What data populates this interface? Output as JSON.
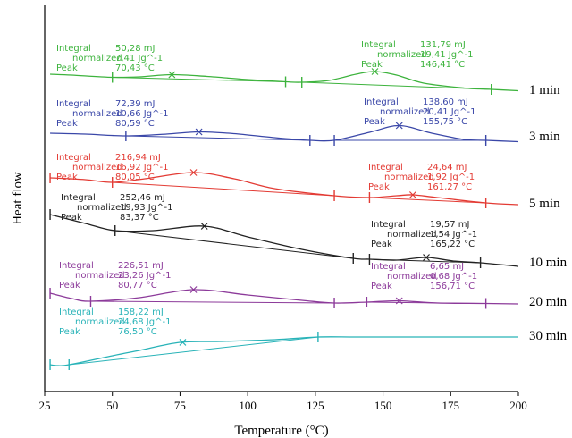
{
  "chart_data": {
    "type": "line",
    "title": "",
    "xlabel": "Temperature (°C)",
    "ylabel": "Heat flow",
    "xlim": [
      25,
      200
    ],
    "xticks": [
      "25",
      "50",
      "75",
      "100",
      "125",
      "150",
      "175",
      "200"
    ],
    "grid": false,
    "colors": {
      "1 min": "#3db33d",
      "3 min": "#3a47a8",
      "5 min": "#e33b34",
      "10 min": "#222222",
      "20 min": "#8c3a9a",
      "30 min": "#29b3b8"
    },
    "series": [
      {
        "name": "1 min",
        "x": [
          27,
          35,
          50,
          60,
          72,
          85,
          100,
          114,
          120,
          130,
          140,
          147,
          155,
          165,
          180,
          190,
          200
        ],
        "y": [
          83,
          84,
          86.5,
          86,
          83.5,
          85.5,
          89,
          91.5,
          92,
          90,
          83,
          80,
          84,
          93,
          98.5,
          100,
          101.5
        ],
        "peaks": [
          {
            "integral": "50,28 mJ",
            "normalized": "7,41 Jg^-1",
            "peak": "70,43 °C"
          },
          {
            "integral": "131,79 mJ",
            "normalized": "19,41 Jg^-1",
            "peak": "146,41 °C"
          }
        ]
      },
      {
        "name": "3 min",
        "x": [
          27,
          40,
          55,
          70,
          82,
          95,
          110,
          123,
          132,
          145,
          156,
          168,
          180,
          188,
          200
        ],
        "y": [
          149,
          150,
          152,
          150,
          147.5,
          149.5,
          154,
          157,
          157,
          148,
          140.5,
          149,
          156,
          157,
          158.5
        ],
        "peaks": [
          {
            "integral": "72,39 mJ",
            "normalized": "10,66 Jg^-1",
            "peak": "80,59 °C"
          },
          {
            "integral": "138,60 mJ",
            "normalized": "20,41 Jg^-1",
            "peak": "155,75 °C"
          }
        ]
      },
      {
        "name": "5 min",
        "x": [
          27,
          40,
          50,
          62,
          80,
          95,
          110,
          132,
          145,
          155,
          161,
          170,
          188,
          200
        ],
        "y": [
          199,
          201,
          204,
          200,
          193,
          200,
          211,
          219,
          221,
          219,
          218,
          221,
          227,
          229
        ],
        "peaks": [
          {
            "integral": "216,94 mJ",
            "normalized": "16,92 Jg^-1",
            "peak": "80,05 °C"
          },
          {
            "integral": "24,64 mJ",
            "normalized": "1,92 Jg^-1",
            "peak": "161,27 °C"
          }
        ]
      },
      {
        "name": "10 min",
        "x": [
          27,
          40,
          51,
          65,
          84,
          100,
          120,
          139,
          145,
          155,
          166,
          176,
          186,
          200
        ],
        "y": [
          240,
          250,
          258,
          258,
          253,
          265,
          279,
          289,
          290,
          291,
          288,
          292,
          294,
          298
        ],
        "peaks": [
          {
            "integral": "252,46 mJ",
            "normalized": "19,93 Jg^-1",
            "peak": "83,37 °C"
          },
          {
            "integral": "19,57 mJ",
            "normalized": "1,54 Jg^-1",
            "peak": "165,22 °C"
          }
        ]
      },
      {
        "name": "20 min",
        "x": [
          27,
          35,
          42,
          60,
          80,
          100,
          120,
          132,
          144,
          156,
          170,
          188,
          200
        ],
        "y": [
          328,
          334,
          337,
          333,
          324,
          330,
          336,
          339,
          338,
          336.5,
          339,
          339.5,
          340
        ],
        "peaks": [
          {
            "integral": "226,51 mJ",
            "normalized": "23,26 Jg^-1",
            "peak": "80,77 °C"
          },
          {
            "integral": "6,65 mJ",
            "normalized": "0,68 Jg^-1",
            "peak": "156,71 °C"
          }
        ]
      },
      {
        "name": "30 min",
        "x": [
          27,
          30,
          34,
          50,
          60,
          75,
          90,
          110,
          126,
          140,
          160,
          180,
          200
        ],
        "y": [
          408,
          409,
          408,
          398,
          392,
          383,
          382,
          380,
          377,
          377,
          377,
          377,
          377
        ],
        "peaks": [
          {
            "integral": "158,22 mJ",
            "normalized": "24,68 Jg^-1",
            "peak": "76,50 °C"
          }
        ]
      }
    ],
    "annotation_labels": {
      "integral": "Integral",
      "normalized": "normalized",
      "peak": "Peak"
    }
  }
}
